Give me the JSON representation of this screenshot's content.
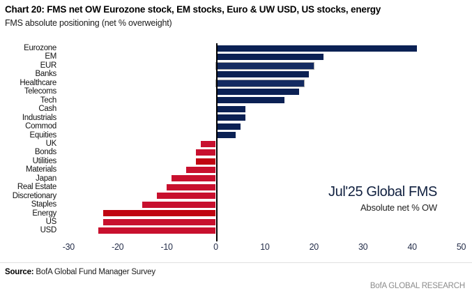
{
  "header": {
    "title": "Chart 20: FMS net OW Eurozone stock, EM stocks, Euro & UW USD, US stocks, energy",
    "subtitle": "FMS absolute positioning (net % overweight)"
  },
  "chart_data": {
    "type": "bar",
    "orientation": "horizontal",
    "title": "Chart 20: FMS net OW Eurozone stock, EM stocks, Euro & UW USD, US stocks, energy",
    "subtitle": "FMS absolute positioning (net % overweight)",
    "categories": [
      "Eurozone",
      "EM",
      "EUR",
      "Banks",
      "Healthcare",
      "Telecoms",
      "Tech",
      "Cash",
      "Industrials",
      "Commod",
      "Equities",
      "UK",
      "Bonds",
      "Utilities",
      "Materials",
      "Japan",
      "Real Estate",
      "Discretionary",
      "Staples",
      "Energy",
      "US",
      "USD"
    ],
    "values": [
      41,
      22,
      20,
      19,
      18,
      17,
      14,
      6,
      6,
      5,
      4,
      -3,
      -4,
      -4,
      -6,
      -9,
      -10,
      -12,
      -15,
      -23,
      -23,
      -24
    ],
    "xlim": [
      -30,
      50
    ],
    "x_ticks": [
      -30,
      -20,
      -10,
      0,
      10,
      20,
      30,
      40,
      50
    ],
    "grid": false,
    "legend": "none",
    "annotation": {
      "line1": "Jul'25 Global FMS",
      "line2": "Absolute net % OW"
    },
    "colors": {
      "positive": "#0b2154",
      "positive_outlined": "#132a61",
      "negative": "#c8102e",
      "negative_alt": "#c00511",
      "outline": "#a6a6a6",
      "zero_line": "#000000"
    },
    "variants": {
      "EUR": "outlined",
      "Healthcare": "outlined",
      "Utilities": "alt",
      "Energy": "alt"
    }
  },
  "footer": {
    "source_label": "Source:",
    "source_text": " BofA Global Fund Manager Survey",
    "brand": "BofA GLOBAL RESEARCH"
  }
}
